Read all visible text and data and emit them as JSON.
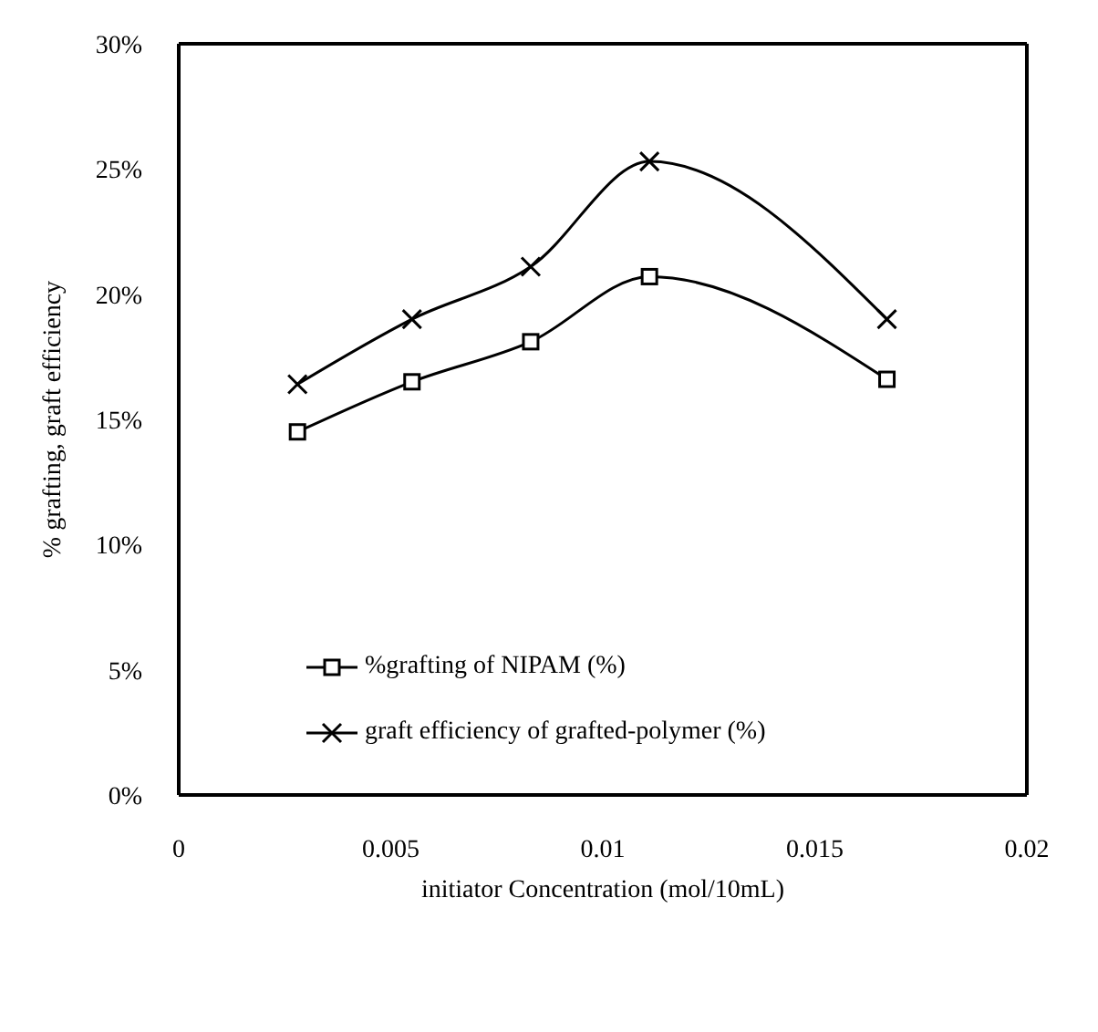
{
  "chart_data": {
    "type": "line",
    "xlabel": "initiator Concentration (mol/10mL)",
    "ylabel": "% grafting, graft efficiency",
    "x": [
      0.0028,
      0.0055,
      0.0083,
      0.0111,
      0.0167
    ],
    "series": [
      {
        "name": "%grafting of NIPAM (%)",
        "color": "#000000",
        "marker": "square",
        "values": [
          14.5,
          16.5,
          18.1,
          20.7,
          16.6
        ]
      },
      {
        "name": "graft efficiency of grafted-polymer (%)",
        "color": "#000000",
        "marker": "cross",
        "values": [
          16.4,
          19.0,
          21.1,
          25.3,
          19.0
        ]
      }
    ],
    "xlim": [
      0,
      0.02
    ],
    "xticks": [
      0,
      0.005,
      0.01,
      0.015,
      0.02
    ],
    "ylim": [
      0,
      30
    ],
    "yticks": [
      {
        "value": 0,
        "label": "0%"
      },
      {
        "value": 5,
        "label": "5%"
      },
      {
        "value": 10,
        "label": "10%"
      },
      {
        "value": 15,
        "label": "15%"
      },
      {
        "value": 20,
        "label": "20%"
      },
      {
        "value": 25,
        "label": "25%"
      },
      {
        "value": 30,
        "label": "30%"
      }
    ],
    "grid": false,
    "legend": "bottom left",
    "line_style": "solid"
  }
}
